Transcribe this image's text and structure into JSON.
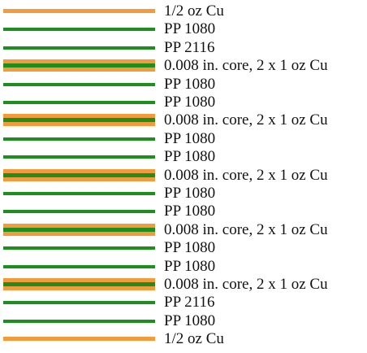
{
  "colors": {
    "copper": "#F39A3C",
    "dielectric": "#1E8E1E"
  },
  "layers": [
    {
      "type": "foil",
      "label": "1/2 oz Cu"
    },
    {
      "type": "prepreg",
      "label": "PP 1080"
    },
    {
      "type": "prepreg",
      "label": "PP 2116"
    },
    {
      "type": "core",
      "label": "0.008 in. core, 2 x 1 oz Cu"
    },
    {
      "type": "prepreg",
      "label": "PP 1080"
    },
    {
      "type": "prepreg",
      "label": "PP 1080"
    },
    {
      "type": "core",
      "label": "0.008 in. core, 2 x 1 oz Cu"
    },
    {
      "type": "prepreg",
      "label": "PP 1080"
    },
    {
      "type": "prepreg",
      "label": "PP 1080"
    },
    {
      "type": "core",
      "label": "0.008 in. core, 2 x 1 oz Cu"
    },
    {
      "type": "prepreg",
      "label": "PP 1080"
    },
    {
      "type": "prepreg",
      "label": "PP 1080"
    },
    {
      "type": "core",
      "label": "0.008 in. core, 2 x 1 oz Cu"
    },
    {
      "type": "prepreg",
      "label": "PP 1080"
    },
    {
      "type": "prepreg",
      "label": "PP 1080"
    },
    {
      "type": "core",
      "label": "0.008 in. core, 2 x 1 oz Cu"
    },
    {
      "type": "prepreg",
      "label": "PP 2116"
    },
    {
      "type": "prepreg",
      "label": "PP 1080"
    },
    {
      "type": "foil",
      "label": "1/2 oz Cu"
    }
  ]
}
